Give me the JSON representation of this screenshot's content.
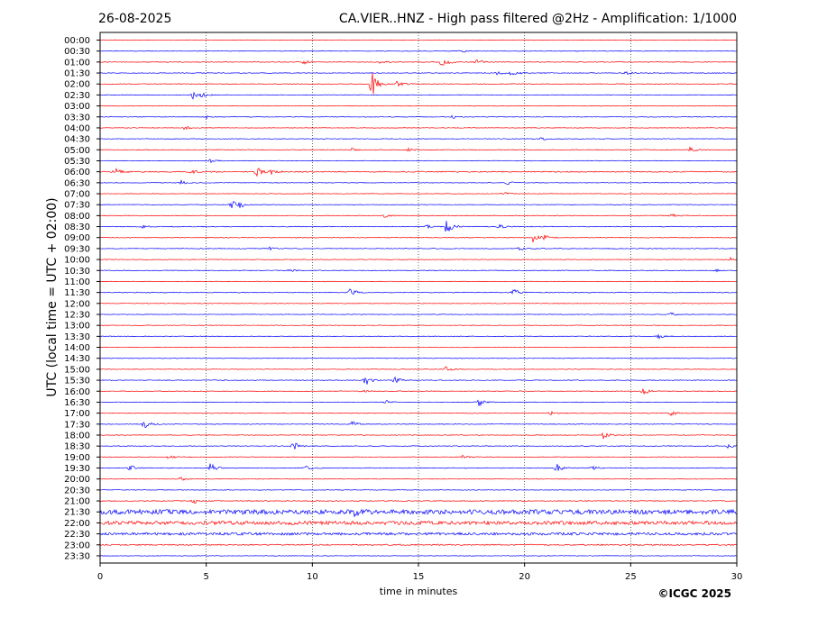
{
  "chart_data": {
    "type": "line",
    "date": "26-08-2025",
    "title": "CA.VIER..HNZ - High pass filtered @2Hz - Amplification: 1/1000",
    "xlabel": "time in minutes",
    "ylabel": "UTC (local time = UTC + 02:00)",
    "copyright": "©ICGC 2025",
    "xlim": [
      0,
      30
    ],
    "x_ticks": [
      0,
      5,
      10,
      15,
      20,
      25,
      30
    ],
    "vertical_gridlines_at": [
      5,
      10,
      15,
      20,
      25
    ],
    "row_interval_minutes": 30,
    "alternating_colors": [
      "#ff0000",
      "#0000ff"
    ],
    "rows": [
      {
        "label": "00:00",
        "color": "#ff0000",
        "noise": 0.3,
        "events": []
      },
      {
        "label": "00:30",
        "color": "#0000ff",
        "noise": 0.3,
        "events": [
          {
            "t": 17.0,
            "amp": 2
          }
        ]
      },
      {
        "label": "01:00",
        "color": "#ff0000",
        "noise": 0.4,
        "events": [
          {
            "t": 9.6,
            "amp": 2
          },
          {
            "t": 13.2,
            "amp": 2
          },
          {
            "t": 16.1,
            "amp": 7
          },
          {
            "t": 17.7,
            "amp": 5
          }
        ]
      },
      {
        "label": "01:30",
        "color": "#0000ff",
        "noise": 0.4,
        "events": [
          {
            "t": 18.7,
            "amp": 4
          },
          {
            "t": 19.4,
            "amp": 3
          },
          {
            "t": 24.8,
            "amp": 2
          }
        ]
      },
      {
        "label": "02:00",
        "color": "#ff0000",
        "noise": 0.4,
        "events": [
          {
            "t": 12.8,
            "amp": 16
          },
          {
            "t": 14.0,
            "amp": 4
          }
        ]
      },
      {
        "label": "02:30",
        "color": "#0000ff",
        "noise": 0.3,
        "events": [
          {
            "t": 4.4,
            "amp": 5
          },
          {
            "t": 4.8,
            "amp": 2
          }
        ]
      },
      {
        "label": "03:00",
        "color": "#ff0000",
        "noise": 0.3,
        "events": []
      },
      {
        "label": "03:30",
        "color": "#0000ff",
        "noise": 0.3,
        "events": [
          {
            "t": 5.0,
            "amp": 2
          },
          {
            "t": 16.6,
            "amp": 2
          }
        ]
      },
      {
        "label": "04:00",
        "color": "#ff0000",
        "noise": 0.3,
        "events": [
          {
            "t": 4.0,
            "amp": 2
          }
        ]
      },
      {
        "label": "04:30",
        "color": "#0000ff",
        "noise": 0.3,
        "events": [
          {
            "t": 20.8,
            "amp": 2
          }
        ]
      },
      {
        "label": "05:00",
        "color": "#ff0000",
        "noise": 0.4,
        "events": [
          {
            "t": 11.8,
            "amp": 2
          },
          {
            "t": 14.5,
            "amp": 2
          },
          {
            "t": 27.8,
            "amp": 3
          }
        ]
      },
      {
        "label": "05:30",
        "color": "#0000ff",
        "noise": 0.3,
        "events": [
          {
            "t": 5.2,
            "amp": 2
          }
        ]
      },
      {
        "label": "06:00",
        "color": "#ff0000",
        "noise": 0.6,
        "events": [
          {
            "t": 0.7,
            "amp": 4
          },
          {
            "t": 4.3,
            "amp": 2
          },
          {
            "t": 7.4,
            "amp": 5
          },
          {
            "t": 8.1,
            "amp": 3
          }
        ]
      },
      {
        "label": "06:30",
        "color": "#0000ff",
        "noise": 0.3,
        "events": [
          {
            "t": 3.8,
            "amp": 3
          },
          {
            "t": 19.2,
            "amp": 2
          }
        ]
      },
      {
        "label": "07:00",
        "color": "#ff0000",
        "noise": 0.3,
        "events": [
          {
            "t": 19.0,
            "amp": 2
          }
        ]
      },
      {
        "label": "07:30",
        "color": "#0000ff",
        "noise": 0.3,
        "events": [
          {
            "t": 6.2,
            "amp": 5
          },
          {
            "t": 6.6,
            "amp": 3
          }
        ]
      },
      {
        "label": "08:00",
        "color": "#ff0000",
        "noise": 0.4,
        "events": [
          {
            "t": 13.4,
            "amp": 2
          },
          {
            "t": 26.9,
            "amp": 2
          }
        ]
      },
      {
        "label": "08:30",
        "color": "#0000ff",
        "noise": 0.4,
        "events": [
          {
            "t": 2.0,
            "amp": 2
          },
          {
            "t": 15.4,
            "amp": 2
          },
          {
            "t": 16.3,
            "amp": 10
          },
          {
            "t": 18.8,
            "amp": 3
          }
        ]
      },
      {
        "label": "09:00",
        "color": "#ff0000",
        "noise": 0.4,
        "events": [
          {
            "t": 20.4,
            "amp": 5
          },
          {
            "t": 20.9,
            "amp": 3
          }
        ]
      },
      {
        "label": "09:30",
        "color": "#0000ff",
        "noise": 0.4,
        "events": [
          {
            "t": 8.0,
            "amp": 2
          },
          {
            "t": 19.8,
            "amp": 2
          }
        ]
      },
      {
        "label": "10:00",
        "color": "#ff0000",
        "noise": 0.3,
        "events": [
          {
            "t": 29.7,
            "amp": 2
          }
        ]
      },
      {
        "label": "10:30",
        "color": "#0000ff",
        "noise": 0.4,
        "events": [
          {
            "t": 8.9,
            "amp": 2
          },
          {
            "t": 29.0,
            "amp": 2
          }
        ]
      },
      {
        "label": "11:00",
        "color": "#ff0000",
        "noise": 0.3,
        "events": []
      },
      {
        "label": "11:30",
        "color": "#0000ff",
        "noise": 0.4,
        "events": [
          {
            "t": 11.8,
            "amp": 5
          },
          {
            "t": 19.5,
            "amp": 4
          }
        ]
      },
      {
        "label": "12:00",
        "color": "#ff0000",
        "noise": 0.3,
        "events": []
      },
      {
        "label": "12:30",
        "color": "#0000ff",
        "noise": 0.3,
        "events": [
          {
            "t": 26.9,
            "amp": 2
          }
        ]
      },
      {
        "label": "13:00",
        "color": "#ff0000",
        "noise": 0.3,
        "events": []
      },
      {
        "label": "13:30",
        "color": "#0000ff",
        "noise": 0.4,
        "events": [
          {
            "t": 26.3,
            "amp": 3
          }
        ]
      },
      {
        "label": "14:00",
        "color": "#ff0000",
        "noise": 0.3,
        "events": []
      },
      {
        "label": "14:30",
        "color": "#0000ff",
        "noise": 0.3,
        "events": []
      },
      {
        "label": "15:00",
        "color": "#ff0000",
        "noise": 0.3,
        "events": [
          {
            "t": 16.3,
            "amp": 3
          }
        ]
      },
      {
        "label": "15:30",
        "color": "#0000ff",
        "noise": 0.4,
        "events": [
          {
            "t": 12.5,
            "amp": 6
          },
          {
            "t": 13.9,
            "amp": 4
          }
        ]
      },
      {
        "label": "16:00",
        "color": "#ff0000",
        "noise": 0.4,
        "events": [
          {
            "t": 12.3,
            "amp": 2
          },
          {
            "t": 25.6,
            "amp": 4
          }
        ]
      },
      {
        "label": "16:30",
        "color": "#0000ff",
        "noise": 0.3,
        "events": [
          {
            "t": 13.4,
            "amp": 3
          },
          {
            "t": 17.8,
            "amp": 6
          }
        ]
      },
      {
        "label": "17:00",
        "color": "#ff0000",
        "noise": 0.4,
        "events": [
          {
            "t": 21.2,
            "amp": 2
          },
          {
            "t": 26.9,
            "amp": 3
          }
        ]
      },
      {
        "label": "17:30",
        "color": "#0000ff",
        "noise": 0.4,
        "events": [
          {
            "t": 2.1,
            "amp": 6
          },
          {
            "t": 11.9,
            "amp": 4
          }
        ]
      },
      {
        "label": "18:00",
        "color": "#ff0000",
        "noise": 0.4,
        "events": [
          {
            "t": 23.7,
            "amp": 5
          }
        ]
      },
      {
        "label": "18:30",
        "color": "#0000ff",
        "noise": 0.4,
        "events": [
          {
            "t": 9.1,
            "amp": 5
          },
          {
            "t": 29.6,
            "amp": 3
          }
        ]
      },
      {
        "label": "19:00",
        "color": "#ff0000",
        "noise": 0.4,
        "events": [
          {
            "t": 3.2,
            "amp": 2
          },
          {
            "t": 17.1,
            "amp": 2
          }
        ]
      },
      {
        "label": "19:30",
        "color": "#0000ff",
        "noise": 0.4,
        "events": [
          {
            "t": 1.4,
            "amp": 4
          },
          {
            "t": 5.2,
            "amp": 6
          },
          {
            "t": 9.7,
            "amp": 3
          },
          {
            "t": 21.5,
            "amp": 5
          },
          {
            "t": 23.2,
            "amp": 2
          }
        ]
      },
      {
        "label": "20:00",
        "color": "#ff0000",
        "noise": 0.3,
        "events": [
          {
            "t": 3.8,
            "amp": 2
          }
        ]
      },
      {
        "label": "20:30",
        "color": "#0000ff",
        "noise": 0.3,
        "events": []
      },
      {
        "label": "21:00",
        "color": "#ff0000",
        "noise": 0.5,
        "events": [
          {
            "t": 4.4,
            "amp": 3
          }
        ]
      },
      {
        "label": "21:30",
        "color": "#0000ff",
        "noise": 2.5,
        "events": [
          {
            "t": 12.0,
            "amp": 4
          }
        ]
      },
      {
        "label": "22:00",
        "color": "#ff0000",
        "noise": 2.0,
        "events": []
      },
      {
        "label": "22:30",
        "color": "#0000ff",
        "noise": 1.4,
        "events": []
      },
      {
        "label": "23:00",
        "color": "#ff0000",
        "noise": 0.7,
        "events": []
      },
      {
        "label": "23:30",
        "color": "#0000ff",
        "noise": 0.3,
        "events": []
      }
    ]
  }
}
